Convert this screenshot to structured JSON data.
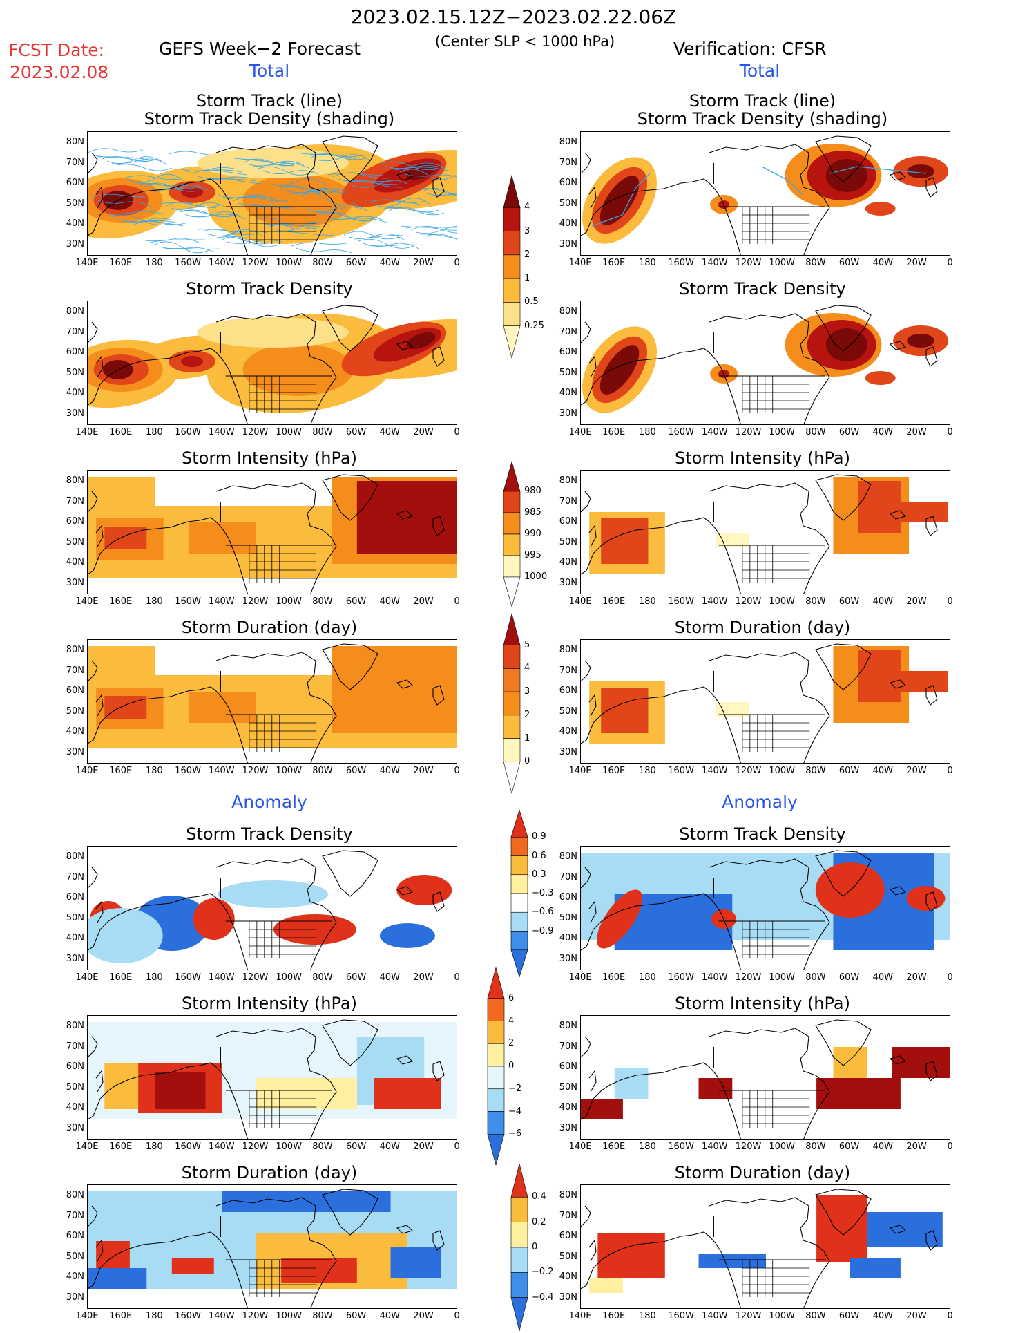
{
  "header": {
    "period": "2023.02.15.12Z−2023.02.22.06Z",
    "criterion": "(Center SLP < 1000 hPa)",
    "fcst_label": "FCST Date:",
    "fcst_date": "2023.02.08",
    "left_title": "GEFS Week−2 Forecast",
    "right_title": "Verification: CFSR",
    "total_label": "Total",
    "anomaly_label": "Anomaly"
  },
  "panel_titles": {
    "track": [
      "Storm Track (line)",
      "Storm Track Density (shading)"
    ],
    "density": "Storm Track Density",
    "intensity": "Storm Intensity (hPa)",
    "duration": "Storm Duration (day)"
  },
  "axes": {
    "lat_labels": [
      "80N",
      "70N",
      "60N",
      "50N",
      "40N",
      "30N"
    ],
    "lon_labels": [
      "140E",
      "160E",
      "180",
      "160W",
      "140W",
      "120W",
      "100W",
      "80W",
      "60W",
      "40W",
      "20W",
      "0"
    ]
  },
  "colorbars": [
    {
      "id": "density_total",
      "levels": [
        "0.25",
        "0.5",
        "1",
        "2",
        "3",
        "4"
      ],
      "colors": [
        "#fff6c0",
        "#fde08a",
        "#fbbb3c",
        "#f58d1c",
        "#e0461a",
        "#b8140f",
        "#7a0a08"
      ]
    },
    {
      "id": "intensity_total",
      "levels": [
        "1000",
        "995",
        "990",
        "985",
        "980"
      ],
      "colors": [
        "#ffffff",
        "#fff6c0",
        "#fbbb3c",
        "#f58d1c",
        "#e0461a",
        "#a30f0c"
      ]
    },
    {
      "id": "duration_total",
      "levels": [
        "0",
        "1",
        "2",
        "3",
        "4",
        "5"
      ],
      "colors": [
        "#ffffff",
        "#fff6c0",
        "#fbbb3c",
        "#f58d1c",
        "#f07a22",
        "#e0461a",
        "#a30f0c"
      ]
    },
    {
      "id": "density_anom",
      "levels": [
        "−0.9",
        "−0.6",
        "−0.3",
        "0.3",
        "0.6",
        "0.9"
      ],
      "colors": [
        "#2a6fdc",
        "#3f8fea",
        "#a8dcf5",
        "#ffffff",
        "#fff0a0",
        "#fbbb3c",
        "#f26a1e",
        "#e0321a"
      ]
    },
    {
      "id": "intensity_anom",
      "levels": [
        "−6",
        "−4",
        "−2",
        "0",
        "2",
        "4",
        "6"
      ],
      "colors": [
        "#2a6fdc",
        "#3f8fea",
        "#a8dcf5",
        "#e6f6fc",
        "#fff0a0",
        "#fbbb3c",
        "#f26a1e",
        "#e0321a"
      ]
    },
    {
      "id": "duration_anom",
      "levels": [
        "−0.4",
        "−0.2",
        "0",
        "0.2",
        "0.4"
      ],
      "colors": [
        "#2a6fdc",
        "#3f8fea",
        "#a8dcf5",
        "#fff0a0",
        "#fbbb3c",
        "#e0321a"
      ]
    }
  ]
}
